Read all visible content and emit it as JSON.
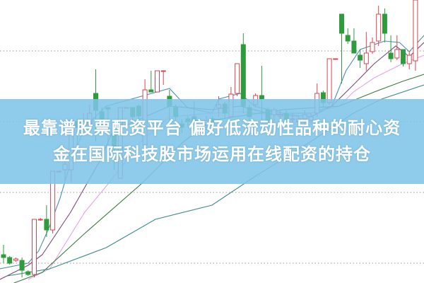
{
  "banner": {
    "line1": "最靠谱股票配资平台 偏好低流动性品种的耐心资",
    "line2": "金在国际科技股市场运用在线配资的持仓"
  },
  "chart_data": {
    "type": "candlestick",
    "title": "",
    "xlabel": "",
    "ylabel": "",
    "ylim": [
      0,
      100
    ],
    "grid": "horizontal dotted",
    "gridlines": [
      82,
      57,
      32,
      7
    ],
    "colors": {
      "up": "#d9434f",
      "down": "#2e9b3c",
      "grid": "#9a9a9a"
    },
    "candles": [
      [
        10,
        9,
        13.5,
        7
      ],
      [
        9,
        7,
        9.5,
        6.5
      ],
      [
        8,
        8.5,
        9,
        7.5
      ],
      [
        8,
        4.5,
        9,
        2
      ],
      [
        4,
        3,
        4.5,
        2.5
      ],
      [
        3,
        22.5,
        22.5,
        2
      ],
      [
        22.5,
        22.5,
        23,
        22
      ],
      [
        22.5,
        18.75,
        27.5,
        16.25
      ],
      [
        18.75,
        39.5,
        39.5,
        17.5
      ],
      [
        39.5,
        39.5,
        39.5,
        39.5
      ],
      [
        40,
        42,
        43,
        36
      ],
      [
        40,
        57.5,
        57.5,
        35.5
      ],
      [
        57,
        55,
        58,
        45
      ],
      [
        55,
        57,
        60,
        52
      ],
      [
        56,
        60,
        63,
        54
      ],
      [
        67,
        61,
        75.5,
        50
      ],
      [
        60.5,
        58,
        62,
        55
      ],
      [
        62,
        61.5,
        62,
        48.75
      ],
      [
        52.5,
        47.5,
        53,
        40
      ],
      [
        37,
        62,
        62,
        37
      ],
      [
        62,
        62,
        62,
        62
      ],
      [
        62,
        58.75,
        62,
        55
      ],
      [
        62.5,
        59,
        63,
        56
      ],
      [
        48.75,
        68.25,
        72,
        48.75
      ],
      [
        68.25,
        67.5,
        75,
        67.5
      ],
      [
        67.5,
        75,
        75,
        67.5
      ],
      [
        75,
        75,
        75,
        70
      ],
      [
        66,
        62.5,
        68.25,
        57.5
      ],
      [
        62,
        58.75,
        63,
        55
      ],
      [
        56.25,
        55,
        58,
        53
      ],
      [
        58,
        57,
        59,
        55
      ],
      [
        58.75,
        56.25,
        64.25,
        56
      ],
      [
        55,
        57,
        58,
        53
      ],
      [
        56,
        57.5,
        59,
        54
      ],
      [
        58,
        56,
        59,
        54
      ],
      [
        62,
        63,
        66,
        58.75
      ],
      [
        63.25,
        60,
        64,
        58
      ],
      [
        58.75,
        66.75,
        69.25,
        58.75
      ],
      [
        67,
        77.5,
        77.5,
        66
      ],
      [
        84.25,
        62.5,
        88.25,
        60
      ],
      [
        62,
        58.75,
        63,
        57
      ],
      [
        63,
        66.25,
        67,
        62
      ],
      [
        66.25,
        65,
        76.75,
        57.5
      ],
      [
        61.25,
        57.5,
        62,
        56
      ],
      [
        59.5,
        61.25,
        62,
        57
      ],
      [
        59,
        59.5,
        61,
        57
      ],
      [
        60,
        57.5,
        61,
        56
      ],
      [
        58,
        58,
        60,
        56
      ],
      [
        57,
        58,
        59,
        55
      ],
      [
        58,
        59.5,
        61,
        56
      ],
      [
        57.5,
        58.75,
        60,
        56
      ],
      [
        60,
        67,
        70.5,
        58.75
      ],
      [
        67.25,
        63.75,
        68,
        62
      ],
      [
        63.75,
        79.25,
        79.25,
        63
      ],
      [
        79.25,
        79.25,
        79.25,
        79.25
      ],
      [
        95,
        88.25,
        95,
        70.5
      ],
      [
        87.5,
        85.5,
        90,
        84.5
      ],
      [
        85.5,
        81.25,
        90,
        81.25
      ],
      [
        80.5,
        78.75,
        82.5,
        76
      ],
      [
        77.5,
        81.25,
        88.75,
        75
      ],
      [
        81.75,
        85,
        86.75,
        81
      ],
      [
        85.5,
        95,
        98,
        83.75
      ],
      [
        95,
        88.25,
        97,
        85
      ],
      [
        81.25,
        79.25,
        87.5,
        78
      ],
      [
        79.5,
        82.5,
        87.5,
        78.75
      ],
      [
        82.5,
        77.5,
        82.5,
        76.5
      ],
      [
        77.5,
        80.5,
        82,
        75.5
      ],
      [
        78.5,
        100,
        100,
        75
      ]
    ],
    "candle_format": [
      "open",
      "close",
      "high",
      "low"
    ],
    "moving_averages": [
      {
        "color": "#4b8fb0",
        "points": [
          [
            -0.6,
            5
          ],
          [
            4,
            7
          ],
          [
            5.7,
            11.25
          ],
          [
            7.5,
            20
          ],
          [
            9.2,
            30
          ],
          [
            10.9,
            42.5
          ],
          [
            13.2,
            55
          ],
          [
            16.7,
            62.5
          ],
          [
            27,
            68.75
          ],
          [
            29.9,
            62
          ],
          [
            33.9,
            60
          ],
          [
            35,
            65
          ],
          [
            38.5,
            67
          ],
          [
            40.8,
            62.5
          ],
          [
            45.4,
            60
          ],
          [
            50,
            60
          ],
          [
            53.4,
            62.5
          ],
          [
            55.7,
            75
          ],
          [
            58,
            82.5
          ],
          [
            62,
            85.5
          ],
          [
            64.4,
            85
          ],
          [
            66,
            81.75
          ],
          [
            68.4,
            87.5
          ]
        ]
      },
      {
        "color": "#7a4a78",
        "points": [
          [
            -0.6,
            1.25
          ],
          [
            4,
            6.25
          ],
          [
            6.3,
            10
          ],
          [
            10.9,
            25
          ],
          [
            15.5,
            42.5
          ],
          [
            17.8,
            53.75
          ],
          [
            27,
            62.5
          ],
          [
            33.9,
            61.25
          ],
          [
            38.5,
            62.5
          ],
          [
            43,
            60
          ],
          [
            50,
            58.75
          ],
          [
            53.4,
            62.5
          ],
          [
            56.9,
            70
          ],
          [
            60.3,
            77.5
          ],
          [
            63.8,
            83.75
          ],
          [
            66,
            80
          ],
          [
            68.4,
            85
          ]
        ]
      },
      {
        "color": "#e6a2e6",
        "points": [
          [
            4,
            1.25
          ],
          [
            7.5,
            5
          ],
          [
            13.2,
            25
          ],
          [
            17,
            35
          ],
          [
            22.4,
            50
          ],
          [
            27,
            58.75
          ],
          [
            33.9,
            60
          ],
          [
            38.5,
            60.5
          ],
          [
            47.7,
            58.75
          ],
          [
            54.6,
            62.5
          ],
          [
            56.9,
            67.5
          ],
          [
            60.3,
            72.5
          ],
          [
            64.9,
            77.5
          ],
          [
            68.4,
            80.5
          ]
        ]
      },
      {
        "color": "#3c7a40",
        "points": [
          [
            1.7,
            0
          ],
          [
            6.3,
            3.75
          ],
          [
            13.2,
            17.5
          ],
          [
            22.4,
            35
          ],
          [
            29.3,
            50
          ],
          [
            33.9,
            57.5
          ],
          [
            45.4,
            61.25
          ],
          [
            54.6,
            62.5
          ],
          [
            60.3,
            67.5
          ],
          [
            64.9,
            71.25
          ],
          [
            68.4,
            73.75
          ]
        ]
      },
      {
        "color": "#3a8a8a",
        "points": [
          [
            0.6,
            2.5
          ],
          [
            7.5,
            5
          ],
          [
            16.7,
            12.5
          ],
          [
            24.7,
            22.5
          ],
          [
            33.9,
            27.5
          ],
          [
            40.8,
            37.5
          ],
          [
            50,
            50
          ],
          [
            56.9,
            60
          ],
          [
            61.5,
            65
          ],
          [
            68.4,
            70
          ]
        ]
      }
    ]
  }
}
